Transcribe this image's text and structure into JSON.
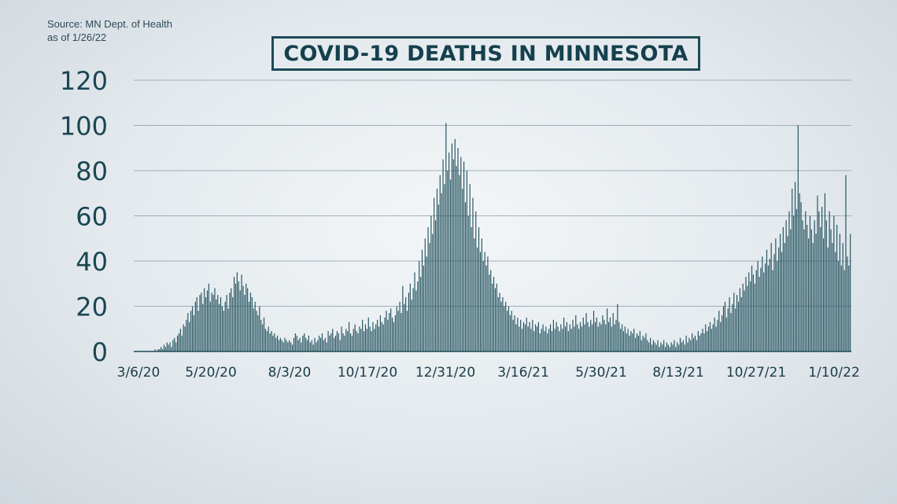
{
  "source": {
    "line1": "Source: MN Dept. of Health",
    "line2": "as of 1/26/22"
  },
  "chart_data": {
    "type": "bar",
    "title": "COVID-19 DEATHS IN MINNESOTA",
    "xlabel": "",
    "ylabel": "",
    "ylim": [
      0,
      120
    ],
    "y_ticks": [
      0,
      20,
      40,
      60,
      80,
      100,
      120
    ],
    "x_tick_labels": [
      "3/6/20",
      "5/20/20",
      "8/3/20",
      "10/17/20",
      "12/31/20",
      "3/16/21",
      "5/30/21",
      "8/13/21",
      "10/27/21",
      "1/10/22"
    ],
    "date_range": [
      "3/6/20",
      "1/25/22"
    ],
    "grid": true,
    "series": [
      {
        "values": [
          0,
          0,
          0,
          0,
          0,
          0,
          0,
          0,
          0,
          0,
          0,
          0,
          0,
          0,
          1,
          0,
          1,
          1,
          2,
          1,
          3,
          2,
          4,
          3,
          4,
          2,
          5,
          6,
          4,
          7,
          8,
          10,
          7,
          12,
          11,
          14,
          17,
          13,
          18,
          20,
          16,
          22,
          24,
          18,
          25,
          26,
          21,
          28,
          24,
          27,
          30,
          22,
          26,
          25,
          28,
          23,
          25,
          21,
          24,
          20,
          18,
          22,
          25,
          19,
          26,
          28,
          24,
          33,
          30,
          35,
          31,
          27,
          34,
          29,
          25,
          30,
          28,
          22,
          26,
          24,
          19,
          22,
          18,
          16,
          20,
          14,
          12,
          15,
          10,
          9,
          11,
          8,
          9,
          7,
          8,
          6,
          7,
          5,
          6,
          5,
          4,
          6,
          5,
          4,
          5,
          4,
          3,
          6,
          8,
          7,
          5,
          6,
          4,
          7,
          8,
          6,
          5,
          7,
          4,
          5,
          3,
          6,
          4,
          5,
          7,
          6,
          8,
          5,
          6,
          4,
          9,
          7,
          8,
          10,
          6,
          7,
          9,
          8,
          5,
          11,
          8,
          7,
          10,
          9,
          13,
          8,
          7,
          10,
          12,
          9,
          8,
          11,
          10,
          14,
          9,
          12,
          10,
          15,
          11,
          9,
          13,
          10,
          12,
          14,
          11,
          16,
          13,
          12,
          15,
          18,
          14,
          17,
          19,
          15,
          13,
          16,
          20,
          18,
          22,
          17,
          29,
          21,
          24,
          18,
          26,
          30,
          23,
          28,
          35,
          27,
          31,
          40,
          33,
          45,
          38,
          50,
          42,
          55,
          48,
          60,
          52,
          68,
          58,
          72,
          65,
          78,
          70,
          85,
          74,
          101,
          80,
          88,
          76,
          92,
          85,
          94,
          82,
          90,
          78,
          86,
          72,
          84,
          66,
          80,
          60,
          74,
          55,
          68,
          50,
          62,
          46,
          55,
          44,
          50,
          40,
          44,
          38,
          42,
          34,
          36,
          30,
          33,
          28,
          30,
          24,
          26,
          22,
          24,
          20,
          22,
          18,
          20,
          16,
          18,
          14,
          16,
          12,
          15,
          11,
          14,
          10,
          13,
          12,
          15,
          11,
          13,
          10,
          14,
          9,
          12,
          11,
          13,
          8,
          10,
          12,
          9,
          11,
          8,
          10,
          12,
          9,
          14,
          10,
          13,
          11,
          9,
          12,
          10,
          15,
          11,
          13,
          9,
          12,
          10,
          14,
          11,
          16,
          12,
          10,
          13,
          11,
          15,
          12,
          17,
          13,
          11,
          14,
          12,
          18,
          13,
          15,
          11,
          13,
          12,
          16,
          14,
          12,
          19,
          13,
          15,
          11,
          17,
          12,
          14,
          21,
          13,
          10,
          12,
          9,
          11,
          8,
          10,
          7,
          9,
          8,
          10,
          6,
          8,
          7,
          9,
          5,
          7,
          6,
          8,
          5,
          4,
          6,
          3,
          5,
          4,
          3,
          5,
          2,
          4,
          3,
          5,
          2,
          4,
          3,
          2,
          4,
          3,
          5,
          2,
          4,
          3,
          6,
          4,
          5,
          3,
          7,
          4,
          6,
          5,
          8,
          6,
          7,
          5,
          9,
          7,
          8,
          10,
          8,
          12,
          9,
          11,
          13,
          10,
          12,
          15,
          11,
          14,
          18,
          13,
          16,
          20,
          22,
          15,
          19,
          24,
          17,
          21,
          26,
          19,
          25,
          22,
          28,
          24,
          30,
          27,
          33,
          29,
          35,
          31,
          38,
          34,
          30,
          36,
          40,
          33,
          37,
          42,
          35,
          39,
          45,
          38,
          41,
          48,
          36,
          43,
          50,
          40,
          46,
          52,
          44,
          55,
          48,
          58,
          51,
          62,
          54,
          72,
          60,
          75,
          63,
          100,
          70,
          66,
          58,
          54,
          62,
          56,
          50,
          60,
          54,
          48,
          58,
          52,
          69,
          62,
          55,
          64,
          50,
          70,
          58,
          46,
          62,
          54,
          48,
          60,
          44,
          56,
          40,
          52,
          38,
          48,
          36,
          78,
          42,
          38,
          52
        ]
      }
    ]
  }
}
